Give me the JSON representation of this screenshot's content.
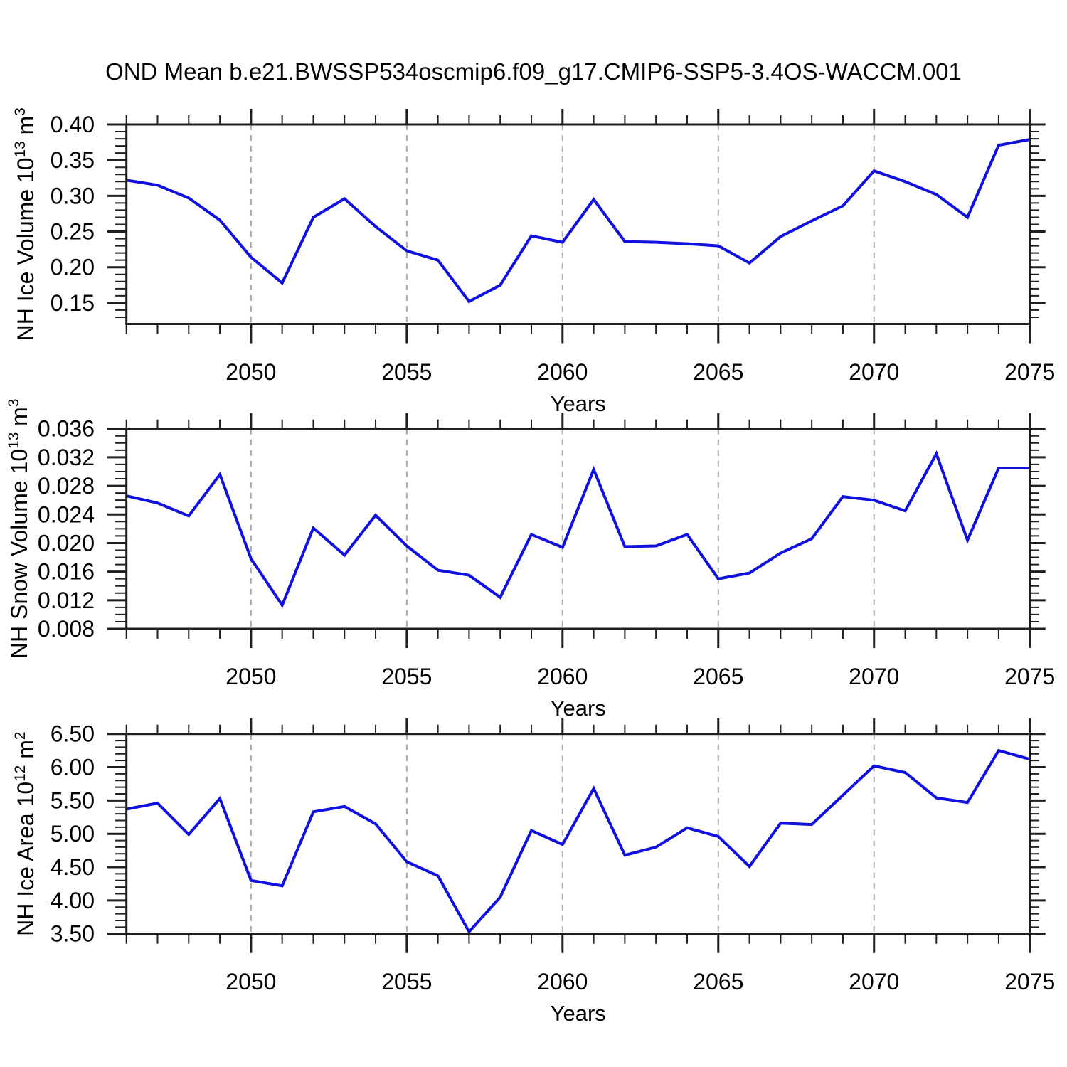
{
  "title": "OND Mean b.e21.BWSSP534oscmip6.f09_g17.CMIP6-SSP5-3.4OS-WACCM.001",
  "colors": {
    "line": "#1010e0",
    "grid": "#a9a9a9",
    "axis": "#1f1f1f",
    "text": "#000000",
    "background": "#ffffff"
  },
  "x_axis": {
    "label": "Years",
    "start": 2046,
    "end": 2075
  },
  "chart_data": [
    {
      "type": "line",
      "ylabel": "NH Ice Volume 10¹³ m³",
      "xlabel": "Years",
      "x": [
        2046,
        2047,
        2048,
        2049,
        2050,
        2051,
        2052,
        2053,
        2054,
        2055,
        2056,
        2057,
        2058,
        2059,
        2060,
        2061,
        2062,
        2063,
        2064,
        2065,
        2066,
        2067,
        2068,
        2069,
        2070,
        2071,
        2072,
        2073,
        2074,
        2075
      ],
      "values": [
        0.322,
        0.315,
        0.297,
        0.266,
        0.214,
        0.178,
        0.27,
        0.296,
        0.257,
        0.223,
        0.21,
        0.152,
        0.175,
        0.244,
        0.235,
        0.295,
        0.236,
        0.235,
        0.233,
        0.23,
        0.206,
        0.243,
        0.265,
        0.286,
        0.335,
        0.32,
        0.302,
        0.27,
        0.371,
        0.379
      ],
      "ylim": [
        0.1205,
        0.4
      ],
      "yticks": [
        0.15,
        0.2,
        0.25,
        0.3,
        0.35,
        0.4
      ],
      "ytick_decimals": 2,
      "y_minor_step": 0.01,
      "x_major_ticks": [
        2050,
        2055,
        2060,
        2065,
        2070,
        2075
      ],
      "x_gridlines": [
        2050,
        2055,
        2060,
        2065,
        2070
      ],
      "grid": "vertical-dashed",
      "legend": "none"
    },
    {
      "type": "line",
      "ylabel": "NH Snow Volume 10¹³ m³",
      "xlabel": "Years",
      "x": [
        2046,
        2047,
        2048,
        2049,
        2050,
        2051,
        2052,
        2053,
        2054,
        2055,
        2056,
        2057,
        2058,
        2059,
        2060,
        2061,
        2062,
        2063,
        2064,
        2065,
        2066,
        2067,
        2068,
        2069,
        2070,
        2071,
        2072,
        2073,
        2074,
        2075
      ],
      "values": [
        0.0266,
        0.0256,
        0.0238,
        0.0296,
        0.0178,
        0.0113,
        0.0221,
        0.0183,
        0.0239,
        0.0196,
        0.0162,
        0.0155,
        0.0124,
        0.0212,
        0.0194,
        0.0303,
        0.0195,
        0.0196,
        0.0212,
        0.015,
        0.0158,
        0.0186,
        0.0206,
        0.0265,
        0.026,
        0.0245,
        0.0325,
        0.0204,
        0.0305,
        0.0305
      ],
      "ylim": [
        0.008,
        0.036
      ],
      "yticks": [
        0.008,
        0.012,
        0.016,
        0.02,
        0.024,
        0.028,
        0.032,
        0.036
      ],
      "ytick_decimals": 3,
      "y_minor_step": 0.001,
      "x_major_ticks": [
        2050,
        2055,
        2060,
        2065,
        2070,
        2075
      ],
      "x_gridlines": [
        2050,
        2055,
        2060,
        2065,
        2070
      ],
      "grid": "vertical-dashed",
      "legend": "none"
    },
    {
      "type": "line",
      "ylabel": "NH Ice Area 10¹² m²",
      "xlabel": "Years",
      "x": [
        2046,
        2047,
        2048,
        2049,
        2050,
        2051,
        2052,
        2053,
        2054,
        2055,
        2056,
        2057,
        2058,
        2059,
        2060,
        2061,
        2062,
        2063,
        2064,
        2065,
        2066,
        2067,
        2068,
        2069,
        2070,
        2071,
        2072,
        2073,
        2074,
        2075
      ],
      "values": [
        5.37,
        5.46,
        4.99,
        5.53,
        4.3,
        4.22,
        5.33,
        5.41,
        5.15,
        4.58,
        4.37,
        3.53,
        4.05,
        5.05,
        4.84,
        5.68,
        4.68,
        4.8,
        5.09,
        4.96,
        4.51,
        5.16,
        5.14,
        5.58,
        6.02,
        5.92,
        5.54,
        5.47,
        6.25,
        6.12
      ],
      "ylim": [
        3.5,
        6.5
      ],
      "yticks": [
        3.5,
        4.0,
        4.5,
        5.0,
        5.5,
        6.0,
        6.5
      ],
      "ytick_decimals": 2,
      "y_minor_step": 0.1,
      "x_major_ticks": [
        2050,
        2055,
        2060,
        2065,
        2070,
        2075
      ],
      "x_gridlines": [
        2050,
        2055,
        2060,
        2065,
        2070
      ],
      "grid": "vertical-dashed",
      "legend": "none"
    }
  ]
}
